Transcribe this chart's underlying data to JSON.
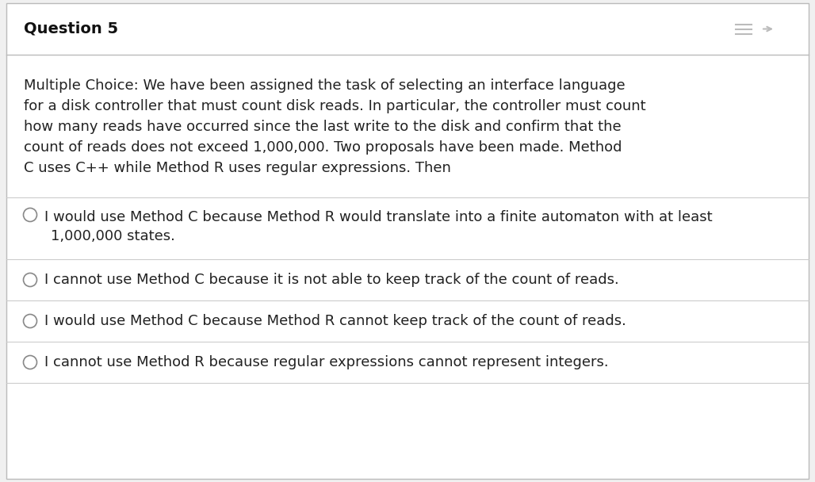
{
  "title": "Question 5",
  "fig_bg_color": "#f0f0f0",
  "card_bg_color": "#ffffff",
  "card_border_color": "#bbbbbb",
  "title_font_size": 14,
  "title_color": "#111111",
  "body_text_lines": [
    "Multiple Choice: We have been assigned the task of selecting an interface language",
    "for a disk controller that must count disk reads. In particular, the controller must count",
    "how many reads have occurred since the last write to the disk and confirm that the",
    "count of reads does not exceed 1,000,000. Two proposals have been made. Method",
    "C uses C++ while Method R uses regular expressions. Then"
  ],
  "body_font_size": 13,
  "body_color": "#222222",
  "choices": [
    [
      "I would use Method C because Method R would translate into a finite automaton with at least",
      "    1,000,000 states."
    ],
    [
      "I cannot use Method C because it is not able to keep track of the count of reads."
    ],
    [
      "I would use Method C because Method R cannot keep track of the count of reads."
    ],
    [
      "I cannot use Method R because regular expressions cannot represent integers."
    ]
  ],
  "choice_font_size": 13,
  "choice_color": "#222222",
  "divider_color": "#cccccc",
  "circle_edge_color": "#888888",
  "header_line_color": "#bbbbbb",
  "icon_color": "#bbbbbb"
}
